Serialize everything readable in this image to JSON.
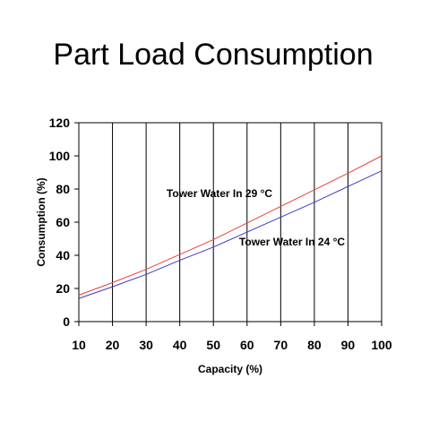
{
  "chart_data": {
    "type": "line",
    "title": "Part Load Consumption",
    "xlabel": "Capacity (%)",
    "ylabel": "Consumption (%)",
    "xlim": [
      10,
      100
    ],
    "ylim": [
      0,
      120
    ],
    "x_ticks": [
      10,
      20,
      30,
      40,
      50,
      60,
      70,
      80,
      90,
      100
    ],
    "y_ticks": [
      0,
      20,
      40,
      60,
      80,
      100,
      120
    ],
    "grid": "vertical",
    "colors": {
      "series_29": "#e8403a",
      "series_24": "#3a3ac8"
    },
    "x": [
      10,
      20,
      30,
      40,
      50,
      60,
      70,
      80,
      90,
      100
    ],
    "series": [
      {
        "name": "Tower Water In 29 °C",
        "values": [
          16,
          23.5,
          31.5,
          40.5,
          49.5,
          59.5,
          69.5,
          79.5,
          89.5,
          100
        ]
      },
      {
        "name": "Tower Water In 24 °C",
        "values": [
          14,
          21,
          28.5,
          37,
          45,
          54,
          63,
          72,
          81.5,
          91
        ]
      }
    ]
  }
}
